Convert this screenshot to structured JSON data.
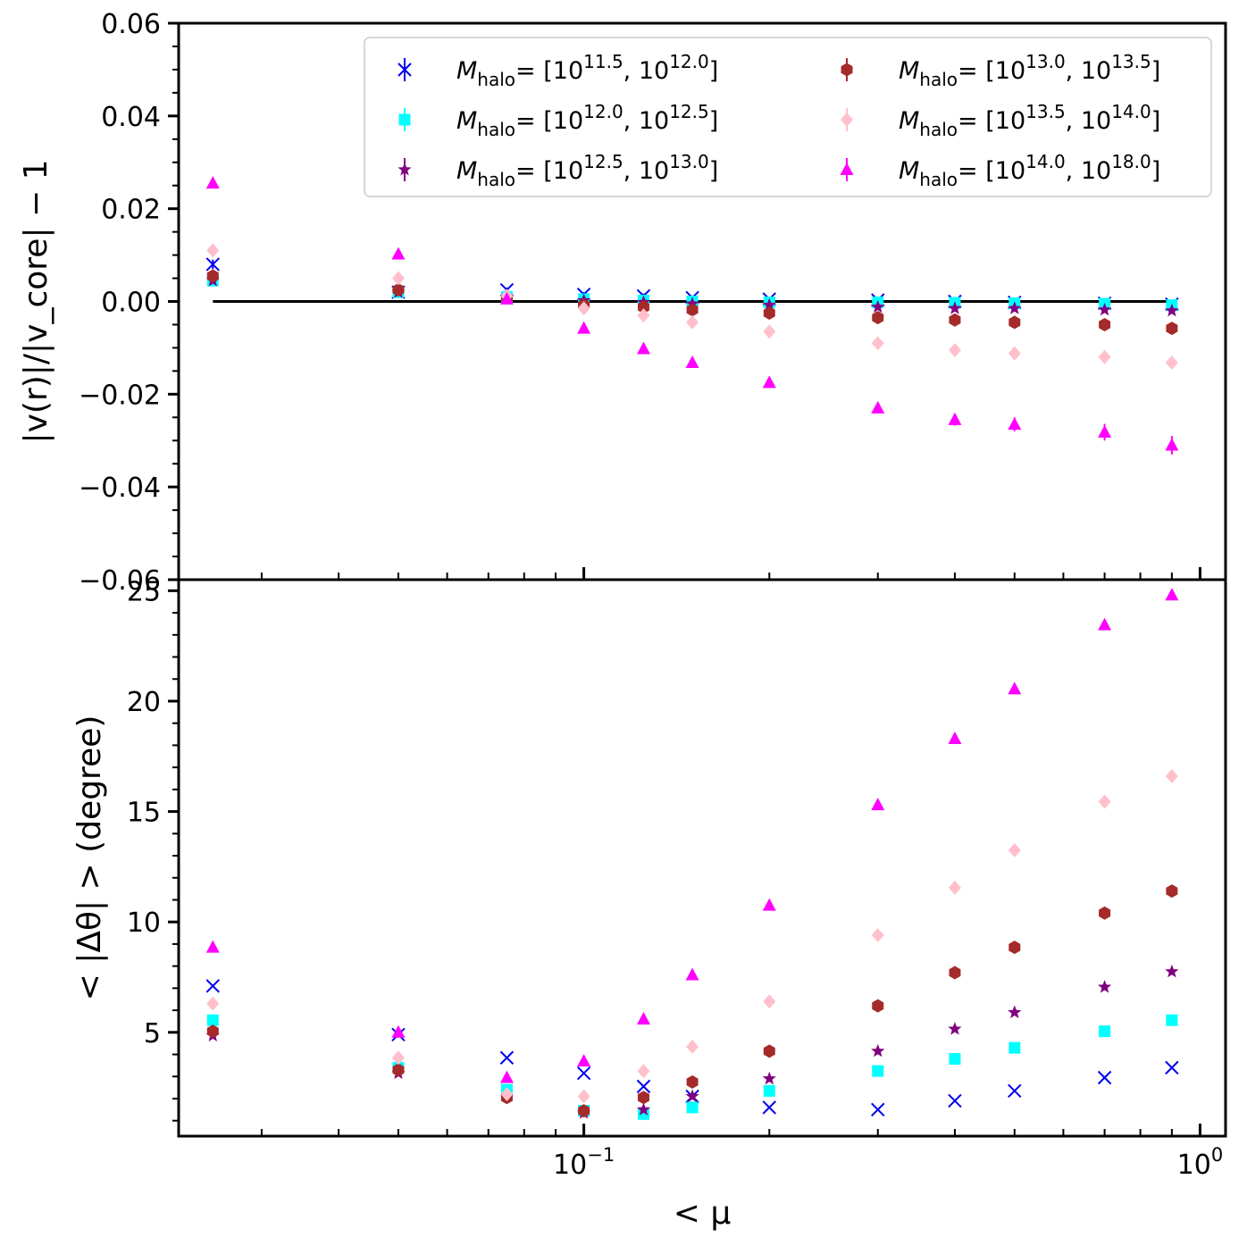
{
  "chart_data": [
    {
      "panel": "top",
      "type": "scatter",
      "xscale": "log",
      "xlim": [
        0.022,
        1.1
      ],
      "ylim": [
        -0.06,
        0.06
      ],
      "ylabel": "|v(r)|/|v_core| − 1",
      "yticks": [
        -0.06,
        -0.04,
        -0.02,
        0.0,
        0.02,
        0.04,
        0.06
      ],
      "ytick_labels": [
        "−0.06",
        "−0.04",
        "−0.02",
        "0.00",
        "0.02",
        "0.04",
        "0.06"
      ],
      "xtick_labels": [],
      "reference_line": {
        "y": 0.0,
        "xmin": 0.025,
        "xmax": 0.9,
        "color": "#000000"
      },
      "legend": {
        "placement": "top-right",
        "columns": 2,
        "entries": [
          {
            "label_prefix": "M",
            "label_sub": "halo",
            "label_range": "= [10",
            "exp1": "11.5",
            "mid": ", 10",
            "exp2": "12.0",
            "end": "]"
          },
          {
            "label_prefix": "M",
            "label_sub": "halo",
            "label_range": "= [10",
            "exp1": "13.0",
            "mid": ", 10",
            "exp2": "13.5",
            "end": "]"
          },
          {
            "label_prefix": "M",
            "label_sub": "halo",
            "label_range": "= [10",
            "exp1": "12.0",
            "mid": ", 10",
            "exp2": "12.5",
            "end": "]"
          },
          {
            "label_prefix": "M",
            "label_sub": "halo",
            "label_range": "= [10",
            "exp1": "13.5",
            "mid": ", 10",
            "exp2": "14.0",
            "end": "]"
          },
          {
            "label_prefix": "M",
            "label_sub": "halo",
            "label_range": "= [10",
            "exp1": "12.5",
            "mid": ", 10",
            "exp2": "13.0",
            "end": "]"
          },
          {
            "label_prefix": "M",
            "label_sub": "halo",
            "label_range": "= [10",
            "exp1": "14.0",
            "mid": ", 10",
            "exp2": "18.0",
            "end": "]"
          }
        ],
        "entry_series": [
          0,
          3,
          1,
          4,
          2,
          5
        ]
      },
      "x": [
        0.025,
        0.05,
        0.075,
        0.1,
        0.125,
        0.15,
        0.2,
        0.3,
        0.4,
        0.5,
        0.7,
        0.9
      ],
      "series": [
        {
          "marker": "x",
          "color": "#0000ee",
          "values": [
            0.008,
            0.002,
            0.0025,
            0.0015,
            0.0012,
            0.0008,
            0.0005,
            0.0003,
            0.0,
            -0.0002,
            -0.0004,
            -0.0006
          ],
          "errors": [
            0.001,
            0.0005,
            0.0005,
            0.0005,
            0.0005,
            0.0005,
            0.0005,
            0.0005,
            0.0005,
            0.0005,
            0.0005,
            0.0005
          ]
        },
        {
          "marker": "square",
          "color": "#00ffff",
          "values": [
            0.0045,
            0.002,
            0.001,
            0.0005,
            0.0002,
            0.0,
            -0.0002,
            -0.0002,
            -0.0003,
            -0.0004,
            -0.0005,
            -0.0008
          ],
          "errors": [
            0.0005,
            0.0005,
            0.0005,
            0.0005,
            0.0005,
            0.0005,
            0.0005,
            0.0005,
            0.0005,
            0.0005,
            0.0005,
            0.0005
          ]
        },
        {
          "marker": "star",
          "color": "#800080",
          "values": [
            0.0045,
            0.002,
            0.0008,
            0.0002,
            -0.0002,
            -0.0005,
            -0.0008,
            -0.0012,
            -0.0015,
            -0.0015,
            -0.0018,
            -0.002
          ],
          "errors": [
            0.0005,
            0.0005,
            0.0005,
            0.0005,
            0.0005,
            0.0005,
            0.0005,
            0.0005,
            0.0005,
            0.0005,
            0.0005,
            0.0005
          ]
        },
        {
          "marker": "hexagon",
          "color": "#a52a2a",
          "values": [
            0.0055,
            0.0025,
            0.0008,
            -0.0008,
            -0.0012,
            -0.0018,
            -0.0025,
            -0.0035,
            -0.004,
            -0.0045,
            -0.005,
            -0.0058
          ],
          "errors": [
            0.0005,
            0.0005,
            0.0005,
            0.0005,
            0.0005,
            0.0005,
            0.0005,
            0.0005,
            0.0005,
            0.0005,
            0.0005,
            0.0005
          ]
        },
        {
          "marker": "diamond",
          "color": "#ffc0cb",
          "values": [
            0.011,
            0.005,
            0.0012,
            -0.0015,
            -0.003,
            -0.0045,
            -0.0065,
            -0.009,
            -0.0105,
            -0.0112,
            -0.012,
            -0.0132
          ],
          "errors": [
            0.0008,
            0.0006,
            0.0005,
            0.0005,
            0.0005,
            0.0005,
            0.0005,
            0.0006,
            0.0006,
            0.0006,
            0.0007,
            0.0007
          ]
        },
        {
          "marker": "triangle",
          "color": "#ff00ff",
          "values": [
            0.0255,
            0.0102,
            0.0005,
            -0.0058,
            -0.0102,
            -0.0132,
            -0.0175,
            -0.023,
            -0.0255,
            -0.0265,
            -0.0282,
            -0.031
          ],
          "errors": [
            0.0008,
            0.0006,
            0.0006,
            0.0007,
            0.0008,
            0.0008,
            0.001,
            0.001,
            0.0013,
            0.0015,
            0.0018,
            0.002
          ]
        }
      ]
    },
    {
      "panel": "bottom",
      "type": "scatter",
      "xscale": "log",
      "xlim": [
        0.022,
        1.1
      ],
      "ylim": [
        0.3,
        25.5
      ],
      "xlabel": "< μ",
      "ylabel": "< |Δθ| >  (degree)",
      "yticks": [
        5,
        10,
        15,
        20,
        25
      ],
      "ytick_labels": [
        "5",
        "10",
        "15",
        "20",
        "25"
      ],
      "xticks": [
        0.1,
        1.0
      ],
      "xtick_labels": [
        {
          "base": "10",
          "exp": "−1"
        },
        {
          "base": "10",
          "exp": "0"
        }
      ],
      "x": [
        0.025,
        0.05,
        0.075,
        0.1,
        0.125,
        0.15,
        0.2,
        0.3,
        0.4,
        0.5,
        0.7,
        0.9
      ],
      "series": [
        {
          "marker": "x",
          "color": "#0000ee",
          "values": [
            7.1,
            4.9,
            3.85,
            3.15,
            2.55,
            2.1,
            1.6,
            1.5,
            1.9,
            2.35,
            2.95,
            3.4
          ]
        },
        {
          "marker": "square",
          "color": "#00ffff",
          "values": [
            5.55,
            3.4,
            2.4,
            1.45,
            1.3,
            1.6,
            2.35,
            3.25,
            3.8,
            4.3,
            5.05,
            5.55
          ]
        },
        {
          "marker": "star",
          "color": "#800080",
          "values": [
            4.85,
            3.15,
            2.1,
            1.35,
            1.5,
            2.1,
            2.9,
            4.15,
            5.15,
            5.9,
            7.05,
            7.75
          ]
        },
        {
          "marker": "hexagon",
          "color": "#a52a2a",
          "values": [
            5.05,
            3.3,
            2.05,
            1.45,
            2.05,
            2.75,
            4.15,
            6.2,
            7.7,
            8.85,
            10.4,
            11.4
          ]
        },
        {
          "marker": "diamond",
          "color": "#ffc0cb",
          "values": [
            6.3,
            3.85,
            2.2,
            2.1,
            3.25,
            4.35,
            6.4,
            9.4,
            11.55,
            13.25,
            15.45,
            16.6
          ]
        },
        {
          "marker": "triangle",
          "color": "#ff00ff",
          "values": [
            8.85,
            5.0,
            2.95,
            3.7,
            5.6,
            7.6,
            10.75,
            15.3,
            18.3,
            20.55,
            23.45,
            24.8
          ]
        }
      ]
    }
  ]
}
